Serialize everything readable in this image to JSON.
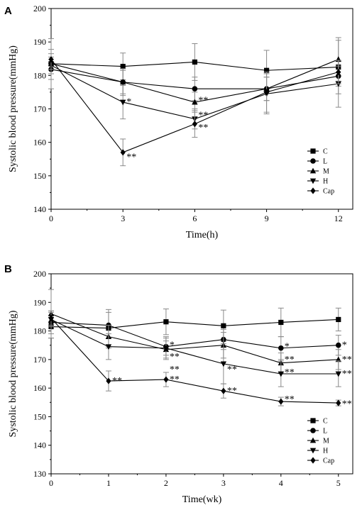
{
  "chart_data": [
    {
      "type": "line",
      "panel_label": "A",
      "xlabel": "Time(h)",
      "ylabel": "Systolic blood pressure(mmHg)",
      "xlim": [
        0,
        12.6
      ],
      "ylim": [
        140,
        200
      ],
      "xticks": [
        0,
        3,
        6,
        9,
        12
      ],
      "yticks": [
        140,
        150,
        160,
        170,
        180,
        190,
        200
      ],
      "legend_position": "bottom-right",
      "series": [
        {
          "name": "C",
          "marker": "square",
          "x": [
            0,
            3,
            6,
            9,
            12
          ],
          "y": [
            183.5,
            182.7,
            184.0,
            181.5,
            182.5
          ],
          "err": [
            7.5,
            4.0,
            5.5,
            6.0,
            8.0
          ]
        },
        {
          "name": "L",
          "marker": "circle",
          "x": [
            0,
            3,
            6,
            9,
            12
          ],
          "y": [
            181.8,
            178.0,
            176.0,
            176.0,
            179.8
          ],
          "err": [
            3.0,
            3.5,
            3.5,
            3.5,
            3.0
          ]
        },
        {
          "name": "M",
          "marker": "triangle-up",
          "x": [
            0,
            3,
            6,
            9,
            12
          ],
          "y": [
            183.5,
            178.0,
            172.0,
            176.0,
            184.8
          ],
          "err": [
            3.0,
            4.0,
            3.0,
            3.5,
            6.5
          ]
        },
        {
          "name": "H",
          "marker": "triangle-down",
          "x": [
            0,
            3,
            6,
            9,
            12
          ],
          "y": [
            183.0,
            172.0,
            167.0,
            174.5,
            177.5
          ],
          "err": [
            2.5,
            5.0,
            3.0,
            6.0,
            7.0
          ]
        },
        {
          "name": "Cap",
          "marker": "diamond",
          "x": [
            0,
            3,
            6,
            9,
            12
          ],
          "y": [
            184.8,
            157.0,
            165.5,
            175.0,
            181.0
          ],
          "err": [
            3.0,
            4.0,
            4.0,
            6.0,
            3.5
          ]
        }
      ],
      "annotations": [
        {
          "x": 3,
          "y": 172.5,
          "text": "*"
        },
        {
          "x": 3,
          "y": 156.0,
          "text": "**"
        },
        {
          "x": 6,
          "y": 173.0,
          "text": "**"
        },
        {
          "x": 6,
          "y": 168.5,
          "text": "**"
        },
        {
          "x": 6,
          "y": 164.8,
          "text": "**"
        }
      ]
    },
    {
      "type": "line",
      "panel_label": "B",
      "xlabel": "Time(wk)",
      "ylabel": "Systolic blood pressure(mmHg)",
      "xlim": [
        0,
        5.25
      ],
      "ylim": [
        130,
        200
      ],
      "xticks": [
        0,
        1,
        2,
        3,
        4,
        5
      ],
      "yticks": [
        130,
        140,
        150,
        160,
        170,
        180,
        190,
        200
      ],
      "legend_position": "bottom-right",
      "series": [
        {
          "name": "C",
          "marker": "square",
          "x": [
            0,
            1,
            2,
            3,
            4,
            5
          ],
          "y": [
            181.5,
            181.0,
            183.2,
            181.8,
            183.0,
            184.0
          ],
          "err": [
            4.0,
            6.5,
            4.5,
            5.5,
            5.0,
            4.0
          ]
        },
        {
          "name": "L",
          "marker": "circle",
          "x": [
            0,
            1,
            2,
            3,
            4,
            5
          ],
          "y": [
            183.0,
            182.0,
            174.5,
            177.0,
            174.0,
            175.0
          ],
          "err": [
            4.0,
            4.5,
            3.0,
            3.5,
            4.0,
            3.5
          ]
        },
        {
          "name": "M",
          "marker": "triangle-up",
          "x": [
            0,
            1,
            2,
            3,
            4,
            5
          ],
          "y": [
            186.0,
            178.0,
            173.5,
            175.0,
            168.8,
            170.0
          ],
          "err": [
            8.5,
            4.0,
            3.0,
            4.5,
            3.5,
            3.5
          ]
        },
        {
          "name": "H",
          "marker": "triangle-down",
          "x": [
            0,
            1,
            2,
            3,
            4,
            5
          ],
          "y": [
            184.0,
            174.5,
            174.0,
            168.5,
            165.0,
            165.0
          ],
          "err": [
            2.5,
            4.5,
            4.0,
            7.0,
            4.5,
            4.5
          ]
        },
        {
          "name": "Cap",
          "marker": "diamond",
          "x": [
            0,
            1,
            2,
            3,
            4,
            5
          ],
          "y": [
            184.5,
            162.5,
            163.0,
            159.0,
            155.3,
            154.8
          ],
          "err": [
            2.5,
            3.5,
            2.5,
            2.5,
            1.5,
            1.0
          ]
        }
      ],
      "annotations": [
        {
          "x": 1,
          "y": 163.0,
          "text": "**"
        },
        {
          "x": 2,
          "y": 175.5,
          "text": "*"
        },
        {
          "x": 2,
          "y": 171.5,
          "text": "**"
        },
        {
          "x": 2,
          "y": 167.0,
          "text": "**"
        },
        {
          "x": 2,
          "y": 163.5,
          "text": "**"
        },
        {
          "x": 3,
          "y": 167.0,
          "text": "**"
        },
        {
          "x": 3,
          "y": 159.5,
          "text": "**"
        },
        {
          "x": 4,
          "y": 175.0,
          "text": "*"
        },
        {
          "x": 4,
          "y": 170.5,
          "text": "**"
        },
        {
          "x": 4,
          "y": 166.0,
          "text": "**"
        },
        {
          "x": 4,
          "y": 156.5,
          "text": "**"
        },
        {
          "x": 5,
          "y": 175.5,
          "text": "*"
        },
        {
          "x": 5,
          "y": 170.5,
          "text": "**"
        },
        {
          "x": 5,
          "y": 165.5,
          "text": "**"
        },
        {
          "x": 5,
          "y": 155.0,
          "text": "**"
        }
      ]
    }
  ]
}
